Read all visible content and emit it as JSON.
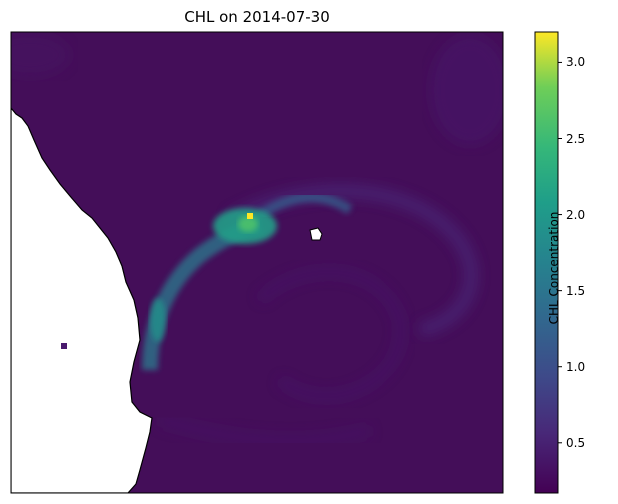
{
  "title": "CHL on 2014-07-30",
  "chart_data": {
    "type": "heatmap",
    "title": "CHL on 2014-07-30",
    "variable": "CHL",
    "date": "2014-07-30",
    "colormap": "viridis",
    "colorbar": {
      "label": "CHL Concentration",
      "range": [
        0.17,
        3.2
      ],
      "ticks": [
        0.5,
        1.0,
        1.5,
        2.0,
        2.5,
        3.0
      ],
      "tick_labels": [
        "0.5",
        "1.0",
        "1.5",
        "2.0",
        "2.5",
        "3.0"
      ]
    },
    "background_level": 0.25,
    "features": [
      {
        "name": "bloom-core",
        "peak": 3.2,
        "level": 2.1
      },
      {
        "name": "coastal-filament",
        "level": 1.6
      },
      {
        "name": "eddy-ring",
        "level": 0.55
      }
    ],
    "land_color": "#ffffff",
    "coastline_color": "#000000",
    "xticks": [],
    "yticks": []
  }
}
